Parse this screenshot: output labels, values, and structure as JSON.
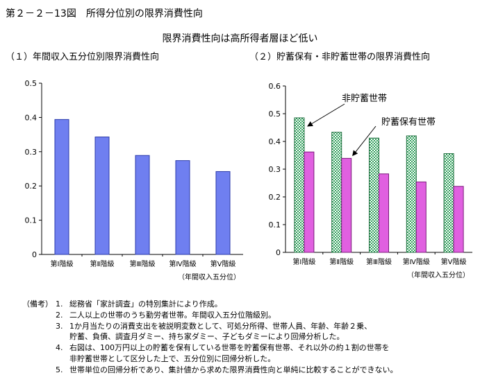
{
  "figure_title": "第２－２－13図　所得分位別の限界消費性向",
  "subtitle": "限界消費性向は高所得者層ほど低い",
  "chart_data": [
    {
      "type": "bar",
      "title": "（１）年間収入五分位別限界消費性向",
      "xlabel": "（年間収入五分位）",
      "ylabel": "",
      "categories": [
        "第Ⅰ階級",
        "第Ⅱ階級",
        "第Ⅲ階級",
        "第Ⅳ階級",
        "第Ⅴ階級"
      ],
      "series": [
        {
          "name": "限界消費性向",
          "values": [
            0.394,
            0.343,
            0.289,
            0.274,
            0.242
          ],
          "color": "#6f7ff0"
        }
      ],
      "yticks": [
        "0",
        "0.1",
        "0.2",
        "0.3",
        "0.4",
        "0.5"
      ],
      "ylim": [
        0,
        0.5
      ],
      "grid": false
    },
    {
      "type": "bar",
      "title": "（２）貯蓄保有・非貯蓄世帯の限界消費性向",
      "xlabel": "（年間収入五分位）",
      "ylabel": "",
      "categories": [
        "第Ⅰ階級",
        "第Ⅱ階級",
        "第Ⅲ階級",
        "第Ⅳ階級",
        "第Ⅴ階級"
      ],
      "series": [
        {
          "name": "非貯蓄世帯",
          "values": [
            0.485,
            0.433,
            0.412,
            0.42,
            0.356
          ],
          "color": "#2e9f5a"
        },
        {
          "name": "貯蓄保有世帯",
          "values": [
            0.362,
            0.339,
            0.283,
            0.254,
            0.238
          ],
          "color": "#e060e0"
        }
      ],
      "yticks": [
        "0",
        "0.1",
        "0.2",
        "0.3",
        "0.4",
        "0.5",
        "0.6"
      ],
      "ylim": [
        0,
        0.6
      ],
      "annotations": [
        "非貯蓄世帯",
        "貯蓄保有世帯"
      ],
      "grid": false
    }
  ],
  "notes": {
    "head": "（備考）",
    "items": [
      {
        "num": "1.",
        "lines": [
          "総務省「家計調査」の特別集計により作成。"
        ]
      },
      {
        "num": "2.",
        "lines": [
          "二人以上の世帯のうち勤労者世帯。年間収入五分位階級別。"
        ]
      },
      {
        "num": "3.",
        "lines": [
          "1か月当たりの消費支出を被説明変数として、可処分所得、世帯人員、年齢、年齢２乗、",
          "貯蓄、負債、調査月ダミー、持ち家ダミー、子どもダミーにより回帰分析した。"
        ]
      },
      {
        "num": "4.",
        "lines": [
          "右図は、100万円以上の貯蓄を保有している世帯を貯蓄保有世帯、それ以外の約１割の世帯を",
          "非貯蓄世帯として区分した上で、五分位別に回帰分析した。"
        ]
      },
      {
        "num": "5.",
        "lines": [
          "世帯単位の回帰分析であり、集計値から求めた限界消費性向と単純に比較することができない。"
        ]
      }
    ]
  }
}
